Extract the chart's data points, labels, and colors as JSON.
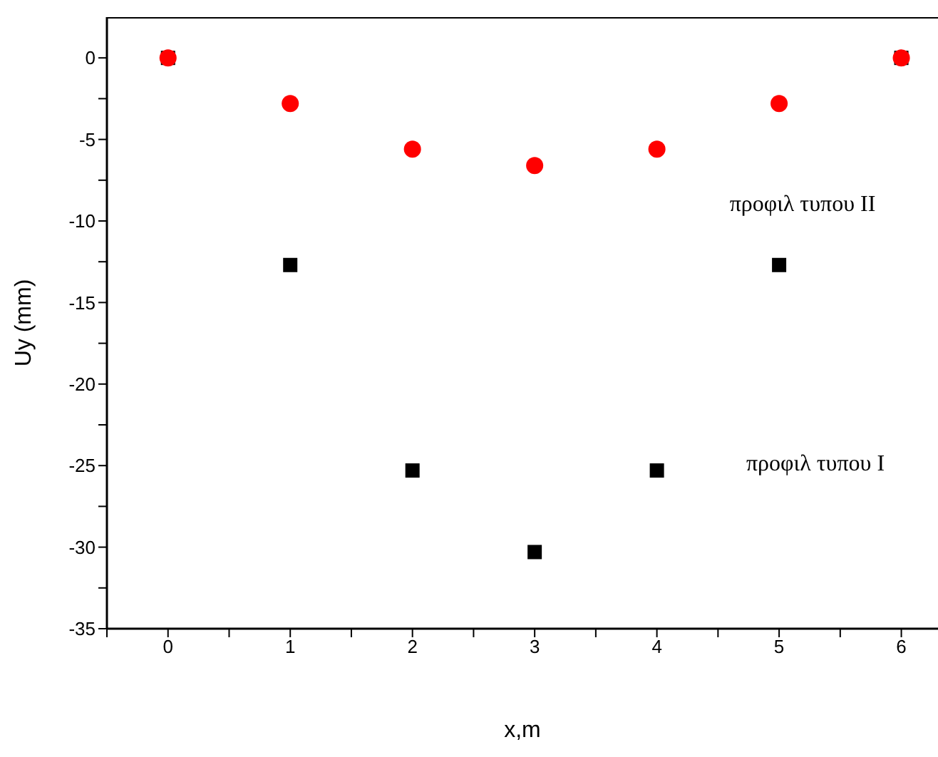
{
  "chart_data": {
    "type": "scatter",
    "xlabel": "x,m",
    "ylabel": "Uy (mm)",
    "x": [
      0,
      1,
      2,
      3,
      4,
      5,
      6
    ],
    "series": [
      {
        "color": "#000000",
        "marker": "square",
        "values": [
          0,
          -12.7,
          -25.3,
          -30.3,
          -25.3,
          -12.7,
          0
        ]
      },
      {
        "color": "#ff0000",
        "marker": "circle",
        "values": [
          0,
          -2.8,
          -5.6,
          -6.6,
          -5.6,
          -2.8,
          0
        ]
      }
    ],
    "xlim": [
      -0.5,
      6.3
    ],
    "ylim": [
      -35,
      2.5
    ],
    "xticks": [
      {
        "value": -0.5,
        "label": null
      },
      0,
      {
        "value": 0.5,
        "label": null
      },
      1,
      {
        "value": 1.5,
        "label": null
      },
      2,
      {
        "value": 2.5,
        "label": null
      },
      3,
      {
        "value": 3.5,
        "label": null
      },
      4,
      {
        "value": 4.5,
        "label": null
      },
      5,
      {
        "value": 5.5,
        "label": null
      },
      6
    ],
    "yticks": [
      -35,
      {
        "value": -32.5,
        "label": null
      },
      -30,
      {
        "value": -27.5,
        "label": null
      },
      -25,
      {
        "value": -22.5,
        "label": null
      },
      -20,
      {
        "value": -17.5,
        "label": null
      },
      -15,
      {
        "value": -12.5,
        "label": null
      },
      -10,
      {
        "value": -7.5,
        "label": null
      },
      -5,
      {
        "value": -2.5,
        "label": null
      },
      0
    ],
    "grid": false,
    "legend": false,
    "annotations": [
      "προφιλ τυπου II",
      "προφιλ τυπου I"
    ]
  }
}
